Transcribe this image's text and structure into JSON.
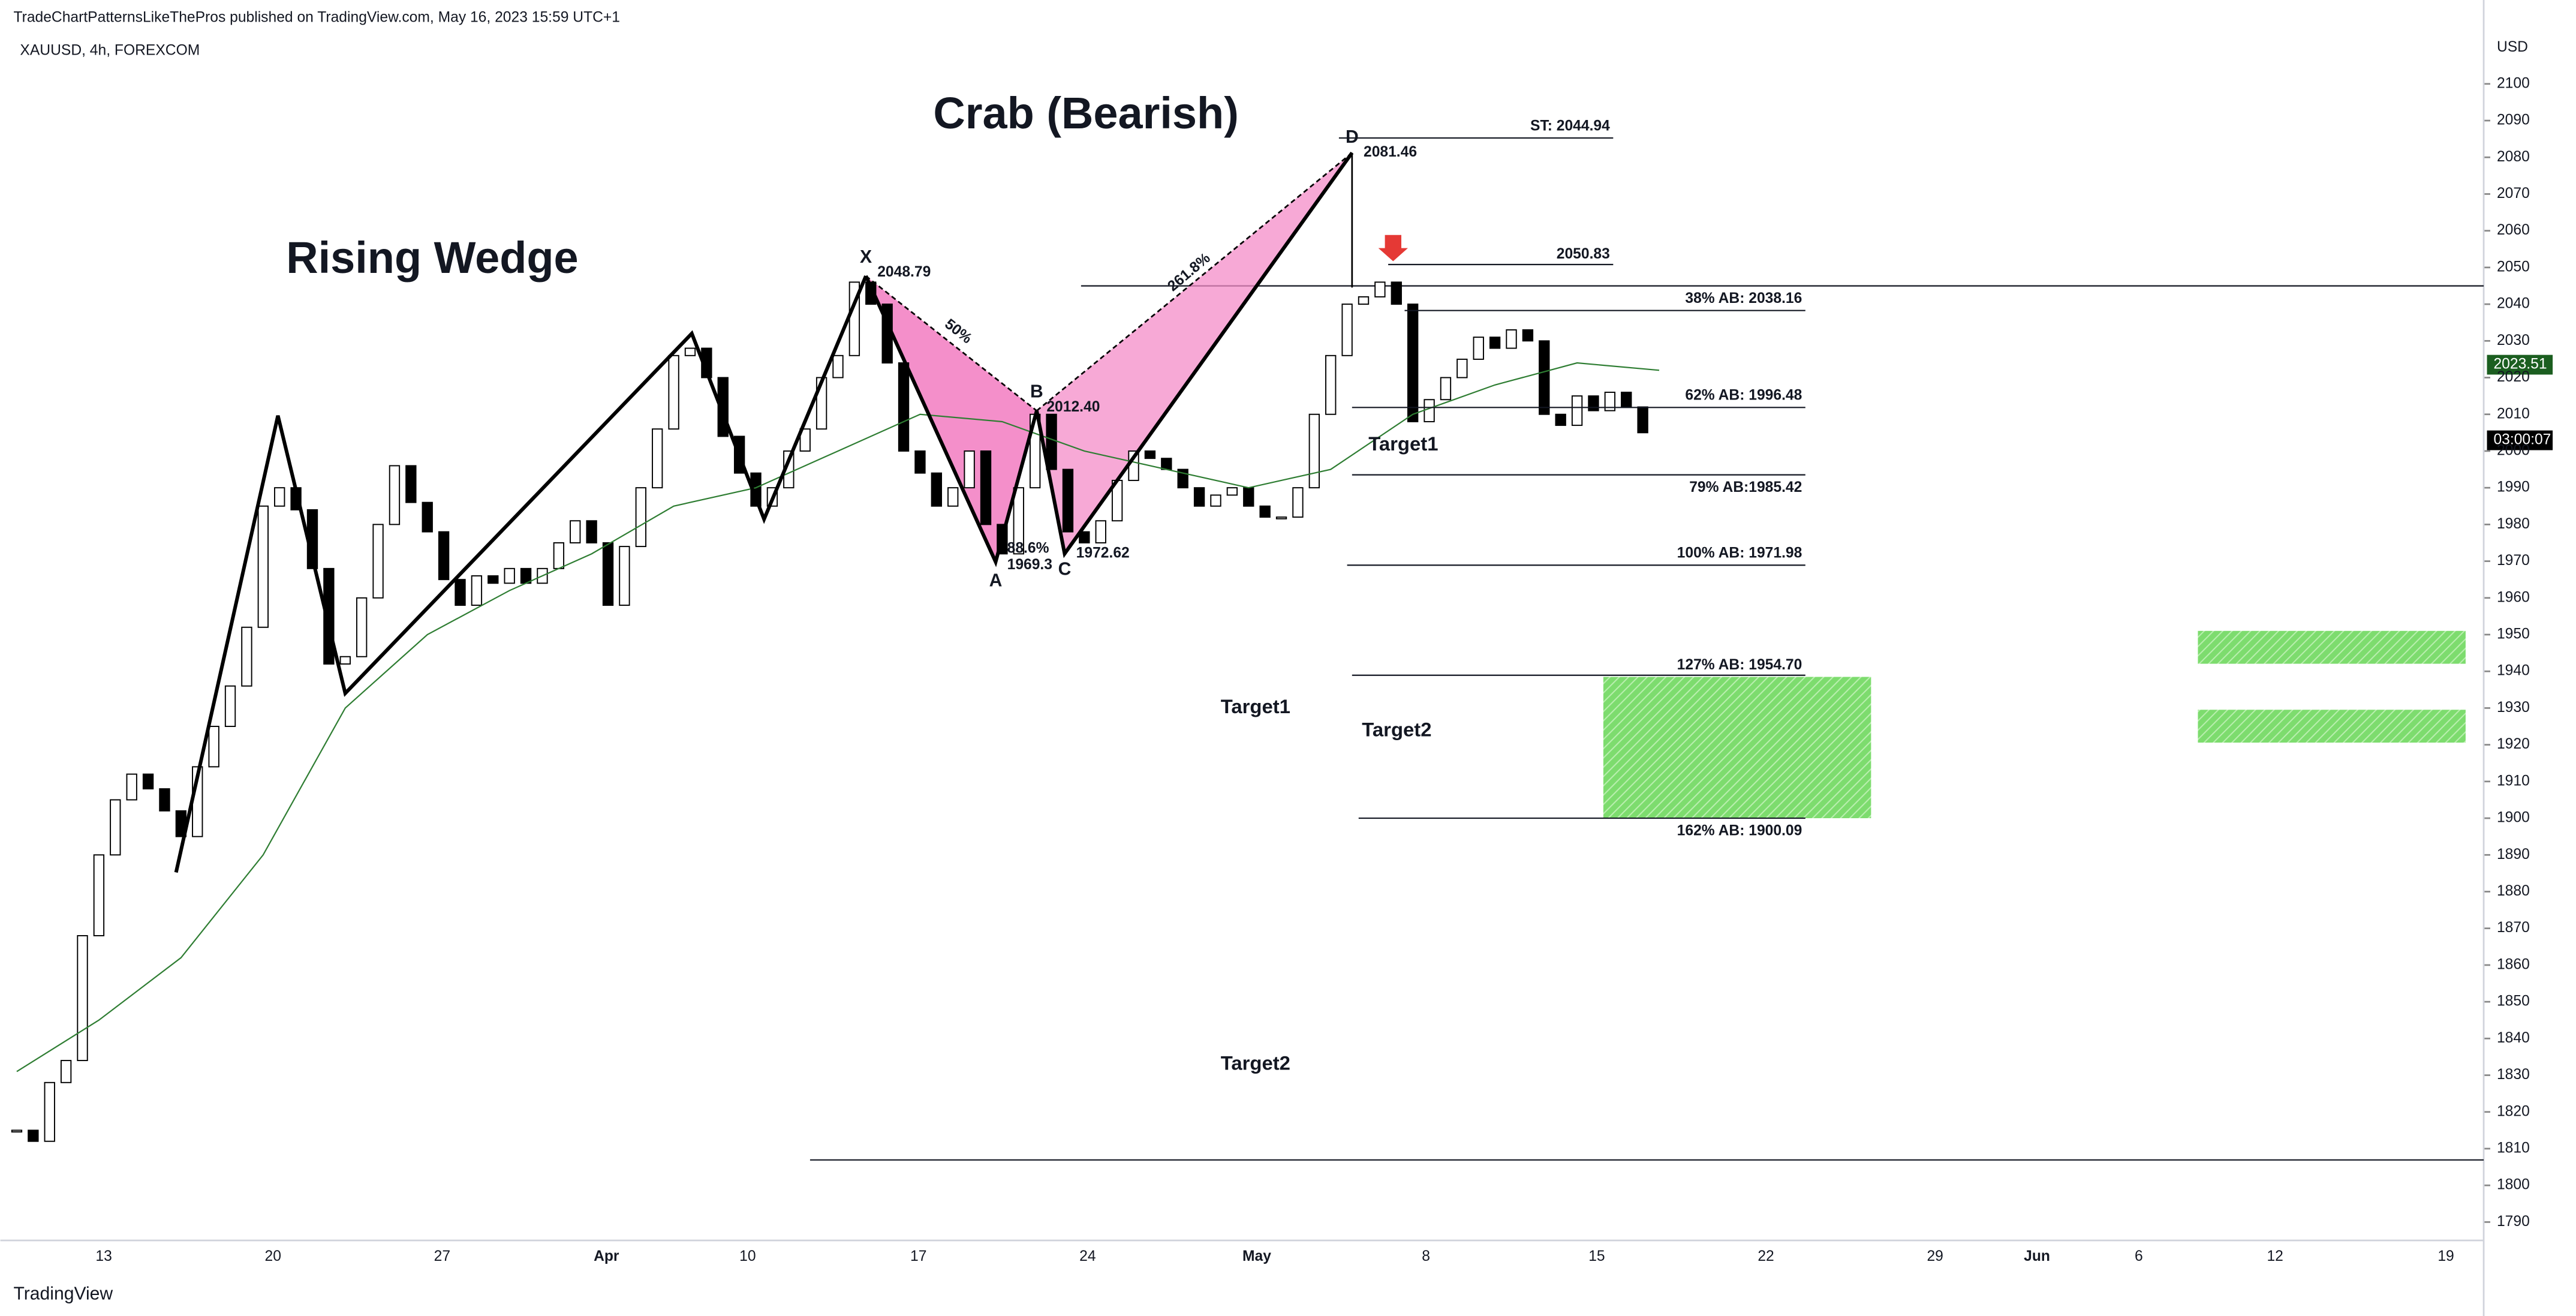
{
  "header": "TradeChartPatternsLikeThePros published on TradingView.com, May 16, 2023 15:59 UTC+1",
  "symbol": "XAUUSD, 4h, FOREXCOM",
  "currency": "USD",
  "logo": "TradingView",
  "price_tag": "2023.51",
  "countdown": "03:00:07",
  "chart_data": {
    "type": "candlestick",
    "title": "Crab (Bearish)",
    "annotations": {
      "wedge": "Rising Wedge",
      "points": [
        "X",
        "A",
        "B",
        "C",
        "D"
      ],
      "point_values": [
        "2048.79",
        "1969.3",
        "2012.40",
        "1972.62",
        "2081.46"
      ],
      "ratios": [
        "50%",
        "88.6%",
        "261.8%"
      ],
      "levels": [
        "ST: 2044.94",
        "2050.83",
        "38% AB: 2038.16",
        "62% AB: 1996.48",
        "79% AB:1985.42",
        "100% AB: 1971.98",
        "127% AB: 1954.70",
        "162% AB: 1900.09"
      ],
      "targets": [
        "Target1",
        "Target1",
        "Target2",
        "Target2"
      ]
    },
    "xticks": [
      "13",
      "20",
      "27",
      "Apr",
      "10",
      "17",
      "24",
      "May",
      "8",
      "15",
      "22",
      "29",
      "Jun",
      "6",
      "12",
      "19"
    ],
    "ylim": [
      1785,
      2113
    ],
    "yticks": [
      1790,
      1800,
      1810,
      1820,
      1830,
      1840,
      1850,
      1860,
      1870,
      1880,
      1890,
      1900,
      1910,
      1920,
      1930,
      1940,
      1950,
      1960,
      1970,
      1980,
      1990,
      2000,
      2010,
      2020,
      2030,
      2040,
      2050,
      2060,
      2070,
      2080,
      2090,
      2100
    ],
    "closes": [
      1815,
      1812,
      1828,
      1834,
      1868,
      1890,
      1905,
      1912,
      1908,
      1902,
      1895,
      1914,
      1925,
      1936,
      1952,
      1985,
      1990,
      1984,
      1968,
      1942,
      1944,
      1960,
      1980,
      1996,
      1986,
      1978,
      1965,
      1958,
      1966,
      1964,
      1968,
      1964,
      1968,
      1975,
      1981,
      1975,
      1958,
      1974,
      1990,
      2006,
      2026,
      2028,
      2020,
      2004,
      1994,
      1985,
      1990,
      2000,
      2006,
      2020,
      2026,
      2046,
      2040,
      2024,
      2000,
      1994,
      1985,
      1990,
      2000,
      1980,
      1972,
      1990,
      2010,
      1995,
      1978,
      1975,
      1981,
      1992,
      2000,
      1998,
      1995,
      1990,
      1985,
      1988,
      1990,
      1985,
      1982,
      1982,
      1990,
      2010,
      2026,
      2040,
      2042,
      2046,
      2040,
      2008,
      2014,
      2020,
      2025,
      2031,
      2028,
      2033,
      2030,
      2010,
      2007,
      2015,
      2011,
      2016,
      2012,
      2005
    ],
    "ma": {
      "color": "#2e7d32",
      "values": [
        1831,
        1845,
        1862,
        1890,
        1930,
        1950,
        1962,
        1972,
        1985,
        1990,
        2000,
        2010,
        2008,
        2000,
        1995,
        1990,
        1995,
        2010,
        2018,
        2024,
        2022
      ]
    },
    "up_color": "#ffffff",
    "down_color": "#000000"
  }
}
